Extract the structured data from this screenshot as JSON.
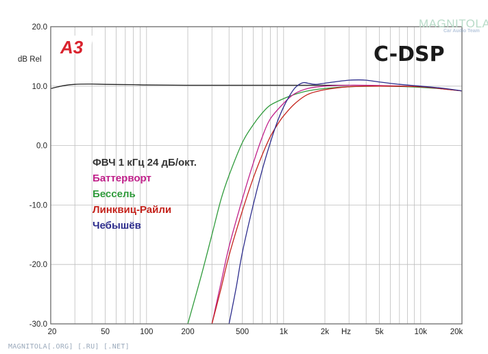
{
  "watermark": {
    "title": "MAGNITOLA",
    "subtitle": "Car Audio Team"
  },
  "badge": "A3",
  "brand": "C-DSP",
  "footer": "MAGNITOLA[.ORG] [.RU] [.NET]",
  "colors": {
    "butterworth": "#c0208a",
    "bessel": "#2e9a3a",
    "linkwitz": "#c4221b",
    "chebyshev": "#2c2c8c",
    "flat": "#222222",
    "grid": "#bdbdbd",
    "axis": "#6a6a6a"
  },
  "chart_data": {
    "type": "line",
    "title": "ФВЧ 1 кГц 24 дБ/окт.",
    "ylabel": "dB Rel",
    "xlabel": "Hz",
    "x_scale": "log",
    "xlim": [
      20,
      20000
    ],
    "ylim": [
      -30,
      20
    ],
    "grid": true,
    "x_ticks": [
      {
        "value": 20,
        "label": "20"
      },
      {
        "value": 50,
        "label": "50"
      },
      {
        "value": 100,
        "label": "100"
      },
      {
        "value": 200,
        "label": "200"
      },
      {
        "value": 500,
        "label": "500"
      },
      {
        "value": 1000,
        "label": "1k"
      },
      {
        "value": 2000,
        "label": "2k"
      },
      {
        "value": 5000,
        "label": "5k"
      },
      {
        "value": 10000,
        "label": "10k"
      },
      {
        "value": 20000,
        "label": "20k"
      }
    ],
    "y_ticks": [
      {
        "value": 20,
        "label": "20.0"
      },
      {
        "value": 10,
        "label": "10.0"
      },
      {
        "value": 0,
        "label": "0.0"
      },
      {
        "value": -10,
        "label": "-10.0"
      },
      {
        "value": -20,
        "label": "-20.0"
      },
      {
        "value": -30,
        "label": "-30.0"
      }
    ],
    "legend": {
      "placement": "center-left",
      "heading": "ФВЧ 1 кГц 24 дБ/окт.",
      "items": [
        {
          "label": "Баттерворт",
          "color": "#c0208a"
        },
        {
          "label": "Бессель",
          "color": "#2e9a3a"
        },
        {
          "label": "Линквиц-Райли",
          "color": "#c4221b"
        },
        {
          "label": "Чебышёв",
          "color": "#2c2c8c"
        }
      ]
    },
    "series": [
      {
        "color": "#222222",
        "points": [
          [
            20,
            9.6
          ],
          [
            25,
            10.1
          ],
          [
            30,
            10.3
          ],
          [
            40,
            10.35
          ],
          [
            50,
            10.3
          ],
          [
            80,
            10.25
          ],
          [
            100,
            10.2
          ],
          [
            200,
            10.15
          ],
          [
            500,
            10.15
          ],
          [
            1000,
            10.15
          ],
          [
            2000,
            10.15
          ],
          [
            3000,
            10.15
          ]
        ]
      },
      {
        "name": "Бессель",
        "color": "#2e9a3a",
        "points": [
          [
            200,
            -30
          ],
          [
            250,
            -22
          ],
          [
            300,
            -15
          ],
          [
            350,
            -9
          ],
          [
            400,
            -5
          ],
          [
            500,
            0.5
          ],
          [
            600,
            3.5
          ],
          [
            700,
            5.5
          ],
          [
            800,
            6.8
          ],
          [
            1000,
            7.9
          ],
          [
            1200,
            8.6
          ],
          [
            1500,
            9.2
          ],
          [
            2000,
            9.6
          ],
          [
            3000,
            9.9
          ],
          [
            5000,
            10.0
          ],
          [
            8000,
            9.9
          ],
          [
            10000,
            9.8
          ],
          [
            15000,
            9.5
          ],
          [
            20000,
            9.2
          ]
        ]
      },
      {
        "name": "Баттерворт",
        "color": "#c0208a",
        "points": [
          [
            300,
            -30
          ],
          [
            350,
            -23
          ],
          [
            400,
            -17
          ],
          [
            500,
            -9
          ],
          [
            600,
            -3
          ],
          [
            700,
            1.5
          ],
          [
            800,
            4.5
          ],
          [
            1000,
            7.1
          ],
          [
            1200,
            8.7
          ],
          [
            1500,
            9.6
          ],
          [
            2000,
            10.0
          ],
          [
            3000,
            10.15
          ],
          [
            5000,
            10.1
          ],
          [
            10000,
            9.9
          ],
          [
            15000,
            9.5
          ],
          [
            20000,
            9.2
          ]
        ]
      },
      {
        "name": "Линквиц-Райли",
        "color": "#c4221b",
        "points": [
          [
            300,
            -30
          ],
          [
            350,
            -24
          ],
          [
            400,
            -18.5
          ],
          [
            500,
            -11
          ],
          [
            600,
            -5.5
          ],
          [
            700,
            -1.5
          ],
          [
            800,
            1.5
          ],
          [
            900,
            3.5
          ],
          [
            1000,
            5.0
          ],
          [
            1200,
            7.0
          ],
          [
            1500,
            8.6
          ],
          [
            2000,
            9.4
          ],
          [
            3000,
            9.9
          ],
          [
            5000,
            10.0
          ],
          [
            10000,
            9.9
          ],
          [
            15000,
            9.5
          ],
          [
            20000,
            9.2
          ]
        ]
      },
      {
        "name": "Чебышёв",
        "color": "#2c2c8c",
        "points": [
          [
            400,
            -30
          ],
          [
            450,
            -24
          ],
          [
            500,
            -18
          ],
          [
            600,
            -10
          ],
          [
            700,
            -4
          ],
          [
            800,
            0.5
          ],
          [
            900,
            4.0
          ],
          [
            1000,
            6.5
          ],
          [
            1100,
            8.3
          ],
          [
            1200,
            9.6
          ],
          [
            1300,
            10.3
          ],
          [
            1400,
            10.6
          ],
          [
            1500,
            10.5
          ],
          [
            1700,
            10.3
          ],
          [
            2000,
            10.5
          ],
          [
            2500,
            10.8
          ],
          [
            3000,
            11.0
          ],
          [
            3500,
            11.05
          ],
          [
            4000,
            11.0
          ],
          [
            5000,
            10.7
          ],
          [
            7000,
            10.3
          ],
          [
            10000,
            10.0
          ],
          [
            15000,
            9.6
          ],
          [
            20000,
            9.2
          ]
        ]
      }
    ]
  }
}
